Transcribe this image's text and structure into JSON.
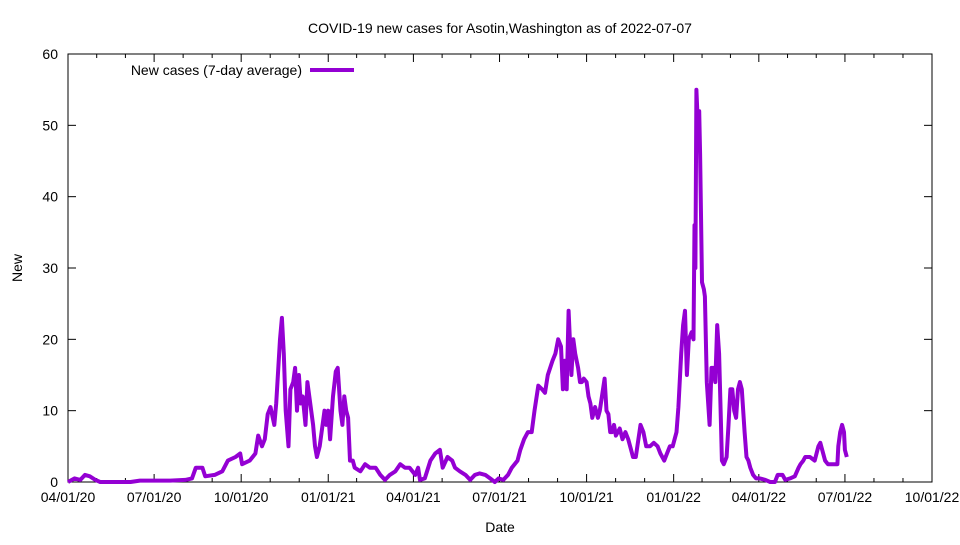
{
  "chart_data": {
    "type": "line",
    "title": "COVID-19 new cases for Asotin,Washington as of 2022-07-07",
    "xlabel": "Date",
    "ylabel": "New",
    "x_unit": "days since 04/01/20",
    "xlim": [
      0,
      913
    ],
    "ylim": [
      0,
      60
    ],
    "yticks": [
      0,
      10,
      20,
      30,
      40,
      50,
      60
    ],
    "xticks": [
      {
        "day": 0,
        "label": "04/01/20"
      },
      {
        "day": 91,
        "label": "07/01/20"
      },
      {
        "day": 183,
        "label": "10/01/20"
      },
      {
        "day": 275,
        "label": "01/01/21"
      },
      {
        "day": 365,
        "label": "04/01/21"
      },
      {
        "day": 456,
        "label": "07/01/21"
      },
      {
        "day": 548,
        "label": "10/01/21"
      },
      {
        "day": 640,
        "label": "01/01/22"
      },
      {
        "day": 730,
        "label": "04/01/22"
      },
      {
        "day": 821,
        "label": "07/01/22"
      },
      {
        "day": 913,
        "label": "10/01/22"
      }
    ],
    "grid": false,
    "legend_position": "top-left",
    "series": [
      {
        "name": "New cases (7-day average)",
        "color": "#9400d3",
        "points": [
          [
            0,
            0
          ],
          [
            7,
            0.5
          ],
          [
            13,
            0.3
          ],
          [
            18,
            1
          ],
          [
            23,
            0.8
          ],
          [
            29,
            0.3
          ],
          [
            34,
            0
          ],
          [
            66,
            0
          ],
          [
            76,
            0.2
          ],
          [
            108,
            0.2
          ],
          [
            124,
            0.3
          ],
          [
            131,
            0.5
          ],
          [
            135,
            2
          ],
          [
            142,
            2
          ],
          [
            145,
            0.8
          ],
          [
            155,
            1
          ],
          [
            163,
            1.5
          ],
          [
            169,
            3
          ],
          [
            177,
            3.5
          ],
          [
            182,
            4
          ],
          [
            184,
            2.5
          ],
          [
            192,
            3
          ],
          [
            198,
            4
          ],
          [
            201,
            6.5
          ],
          [
            205,
            5
          ],
          [
            208,
            6
          ],
          [
            211,
            9.5
          ],
          [
            214,
            10.5
          ],
          [
            218,
            8
          ],
          [
            220,
            11
          ],
          [
            224,
            20
          ],
          [
            226,
            23
          ],
          [
            228,
            18
          ],
          [
            230,
            10
          ],
          [
            233,
            5
          ],
          [
            235,
            13
          ],
          [
            238,
            14
          ],
          [
            240,
            16
          ],
          [
            242,
            10
          ],
          [
            244,
            15
          ],
          [
            246,
            11
          ],
          [
            248,
            12
          ],
          [
            251,
            8
          ],
          [
            253,
            14
          ],
          [
            255,
            12
          ],
          [
            257,
            10
          ],
          [
            259,
            8
          ],
          [
            261,
            5
          ],
          [
            263,
            3.5
          ],
          [
            266,
            5
          ],
          [
            268,
            7
          ],
          [
            271,
            10
          ],
          [
            273,
            8
          ],
          [
            275,
            10
          ],
          [
            277,
            6
          ],
          [
            280,
            12
          ],
          [
            283,
            15.5
          ],
          [
            285,
            16
          ],
          [
            288,
            10
          ],
          [
            290,
            8
          ],
          [
            292,
            12
          ],
          [
            294,
            10
          ],
          [
            296,
            9
          ],
          [
            298,
            3
          ],
          [
            301,
            3
          ],
          [
            303,
            2
          ],
          [
            309,
            1.5
          ],
          [
            314,
            2.5
          ],
          [
            319,
            2
          ],
          [
            325,
            2
          ],
          [
            330,
            1
          ],
          [
            335,
            0.3
          ],
          [
            340,
            1
          ],
          [
            346,
            1.5
          ],
          [
            351,
            2.5
          ],
          [
            356,
            2
          ],
          [
            361,
            2
          ],
          [
            367,
            1
          ],
          [
            370,
            2
          ],
          [
            372,
            0.3
          ],
          [
            377,
            0.5
          ],
          [
            383,
            3
          ],
          [
            388,
            4
          ],
          [
            393,
            4.5
          ],
          [
            396,
            2
          ],
          [
            401,
            3.5
          ],
          [
            406,
            3
          ],
          [
            409,
            2
          ],
          [
            414,
            1.5
          ],
          [
            420,
            1
          ],
          [
            425,
            0.3
          ],
          [
            430,
            1
          ],
          [
            435,
            1.2
          ],
          [
            441,
            1
          ],
          [
            446,
            0.5
          ],
          [
            451,
            0
          ],
          [
            455,
            0.5
          ],
          [
            460,
            0.3
          ],
          [
            465,
            1
          ],
          [
            469,
            2
          ],
          [
            475,
            3
          ],
          [
            478,
            4.5
          ],
          [
            482,
            6
          ],
          [
            486,
            7
          ],
          [
            490,
            7
          ],
          [
            493,
            10
          ],
          [
            497,
            13.5
          ],
          [
            501,
            13
          ],
          [
            504,
            12.5
          ],
          [
            507,
            15
          ],
          [
            512,
            17
          ],
          [
            515,
            18
          ],
          [
            518,
            20
          ],
          [
            521,
            19
          ],
          [
            523,
            13
          ],
          [
            525,
            17
          ],
          [
            527,
            13
          ],
          [
            529,
            24
          ],
          [
            532,
            15
          ],
          [
            534,
            20
          ],
          [
            536,
            18
          ],
          [
            539,
            16
          ],
          [
            541,
            14
          ],
          [
            543,
            14
          ],
          [
            545,
            14.5
          ],
          [
            548,
            14
          ],
          [
            550,
            12
          ],
          [
            552,
            11
          ],
          [
            554,
            9
          ],
          [
            557,
            10.5
          ],
          [
            560,
            9
          ],
          [
            562,
            10
          ],
          [
            567,
            14.5
          ],
          [
            569,
            10
          ],
          [
            571,
            9.5
          ],
          [
            573,
            7
          ],
          [
            575,
            7
          ],
          [
            577,
            8
          ],
          [
            579,
            6.5
          ],
          [
            581,
            7
          ],
          [
            583,
            7.5
          ],
          [
            586,
            6
          ],
          [
            589,
            7
          ],
          [
            592,
            6
          ],
          [
            595,
            4.5
          ],
          [
            597,
            3.5
          ],
          [
            600,
            3.5
          ],
          [
            605,
            8
          ],
          [
            608,
            7
          ],
          [
            611,
            5
          ],
          [
            615,
            5
          ],
          [
            619,
            5.5
          ],
          [
            623,
            5
          ],
          [
            626,
            4
          ],
          [
            630,
            3
          ],
          [
            633,
            4
          ],
          [
            636,
            5
          ],
          [
            639,
            5
          ],
          [
            643,
            7
          ],
          [
            645,
            10.5
          ],
          [
            648,
            18
          ],
          [
            650,
            22
          ],
          [
            652,
            24
          ],
          [
            654,
            15
          ],
          [
            656,
            20
          ],
          [
            659,
            21
          ],
          [
            661,
            20
          ],
          [
            662,
            36
          ],
          [
            663,
            30
          ],
          [
            664,
            55
          ],
          [
            665,
            52
          ],
          [
            667,
            52
          ],
          [
            668,
            46
          ],
          [
            670,
            28
          ],
          [
            672,
            27
          ],
          [
            673,
            26
          ],
          [
            675,
            14
          ],
          [
            678,
            8
          ],
          [
            680,
            16
          ],
          [
            682,
            16
          ],
          [
            684,
            14
          ],
          [
            686,
            22
          ],
          [
            688,
            18
          ],
          [
            690,
            8
          ],
          [
            691,
            3
          ],
          [
            693,
            2.5
          ],
          [
            696,
            3.5
          ],
          [
            698,
            8
          ],
          [
            700,
            13
          ],
          [
            702,
            13
          ],
          [
            704,
            10
          ],
          [
            706,
            9
          ],
          [
            708,
            13
          ],
          [
            710,
            14
          ],
          [
            712,
            13
          ],
          [
            715,
            7
          ],
          [
            717,
            3.5
          ],
          [
            719,
            3
          ],
          [
            721,
            2
          ],
          [
            724,
            1
          ],
          [
            727,
            0.5
          ],
          [
            731,
            0.5
          ],
          [
            737,
            0.3
          ],
          [
            742,
            0
          ],
          [
            747,
            0
          ],
          [
            750,
            1
          ],
          [
            755,
            1
          ],
          [
            758,
            0.3
          ],
          [
            763,
            0.5
          ],
          [
            768,
            0.8
          ],
          [
            772,
            2
          ],
          [
            774,
            2.5
          ],
          [
            777,
            3
          ],
          [
            779,
            3.5
          ],
          [
            784,
            3.5
          ],
          [
            789,
            3
          ],
          [
            793,
            5
          ],
          [
            795,
            5.5
          ],
          [
            797,
            4.5
          ],
          [
            800,
            3
          ],
          [
            803,
            2.5
          ],
          [
            807,
            2.5
          ],
          [
            813,
            2.5
          ],
          [
            814,
            5
          ],
          [
            816,
            7
          ],
          [
            818,
            8
          ],
          [
            820,
            7
          ],
          [
            821,
            4.5
          ],
          [
            823,
            3.5
          ]
        ]
      }
    ]
  }
}
